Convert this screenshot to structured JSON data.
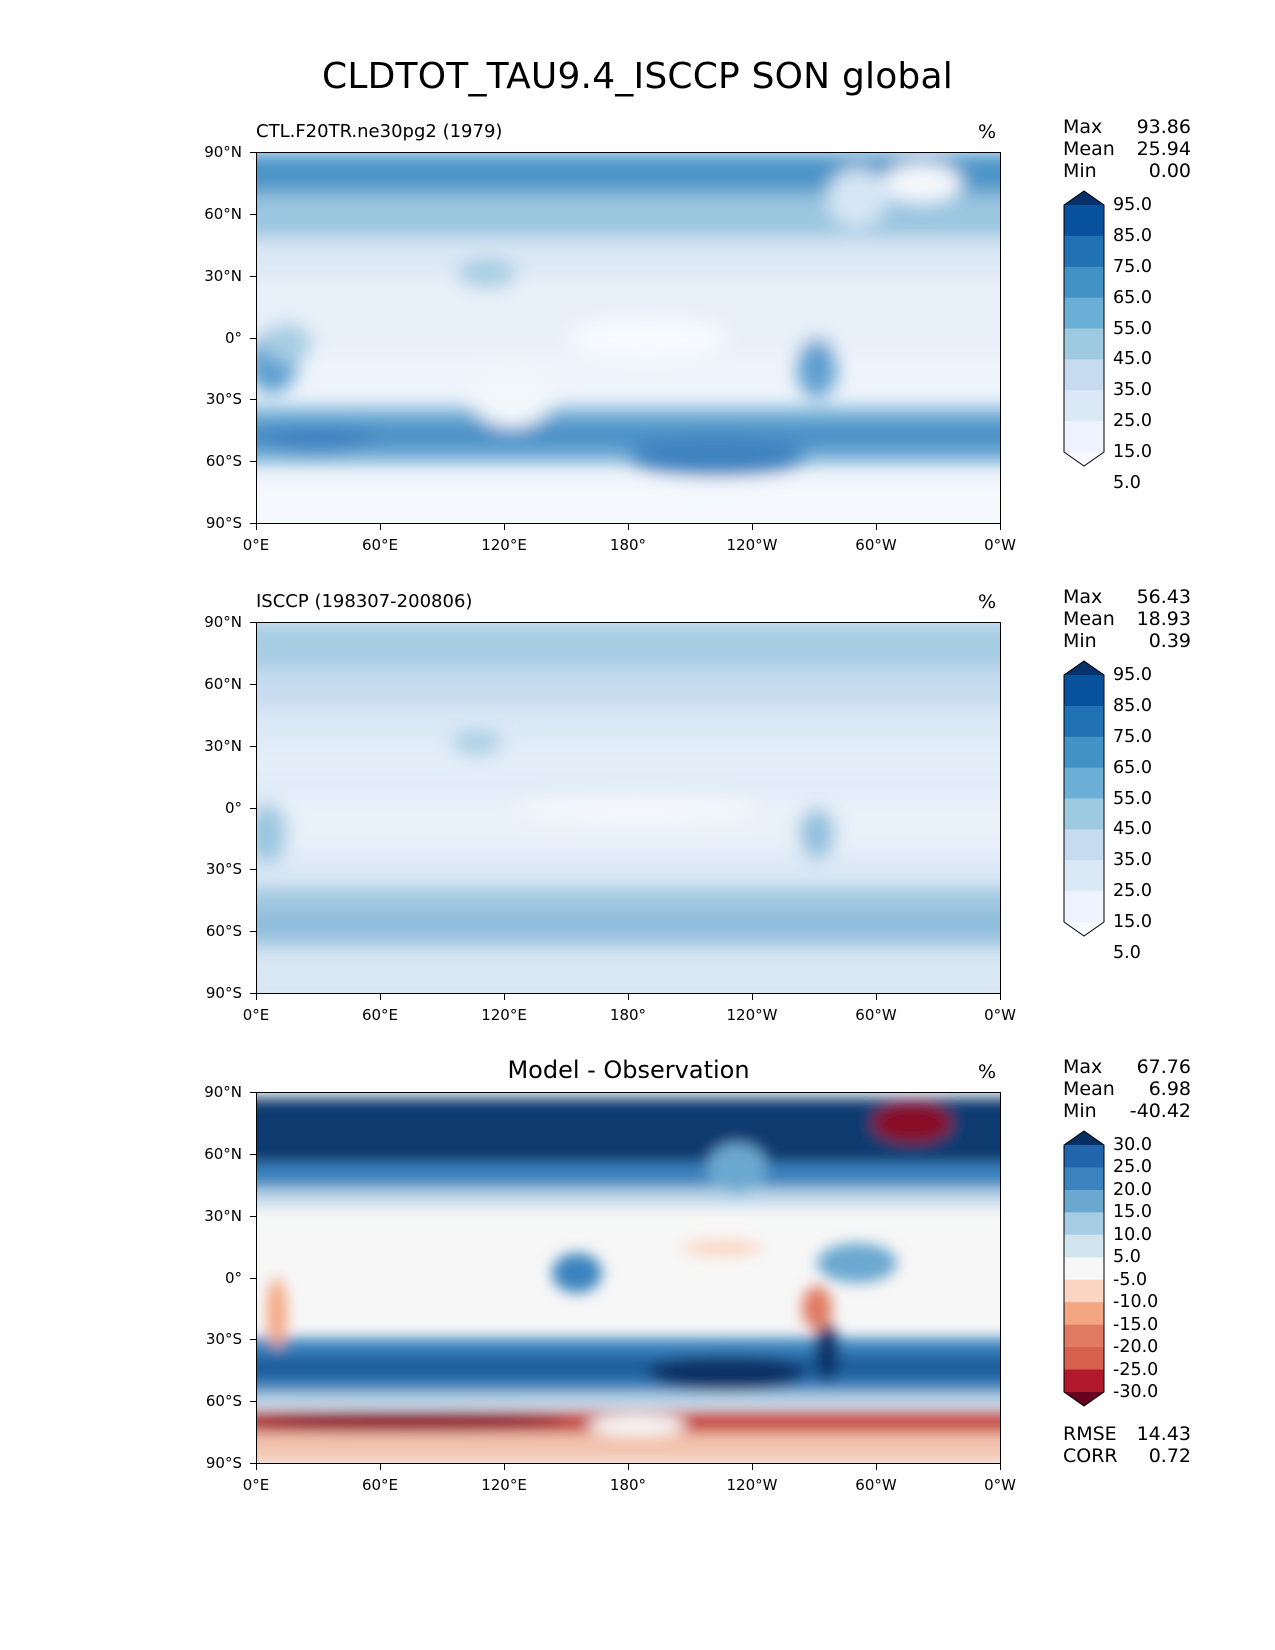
{
  "figure_title": "CLDTOT_TAU9.4_ISCCP SON global",
  "lat_labels": [
    "90°N",
    "60°N",
    "30°N",
    "0°",
    "30°S",
    "60°S",
    "90°S"
  ],
  "lon_labels": [
    "0°E",
    "60°E",
    "120°E",
    "180°",
    "120°W",
    "60°W",
    "0°W"
  ],
  "panels": [
    {
      "title": "CTL.F20TR.ne30pg2 (1979)",
      "units": "%",
      "stats": [
        {
          "label": "Max",
          "value": "93.86"
        },
        {
          "label": "Mean",
          "value": "25.94"
        },
        {
          "label": "Min",
          "value": "0.00"
        }
      ],
      "colorbar_labels": [
        "95.0",
        "85.0",
        "75.0",
        "65.0",
        "55.0",
        "45.0",
        "35.0",
        "25.0",
        "15.0",
        "5.0"
      ],
      "colorbar_colors": [
        "#08306b",
        "#08519c",
        "#2171b5",
        "#4292c6",
        "#6baed6",
        "#9ecae1",
        "#c6dbef",
        "#dbe9f6",
        "#eff3ff",
        "#f7fbff"
      ]
    },
    {
      "title": "ISCCP (198307-200806)",
      "units": "%",
      "stats": [
        {
          "label": "Max",
          "value": "56.43"
        },
        {
          "label": "Mean",
          "value": "18.93"
        },
        {
          "label": "Min",
          "value": "0.39"
        }
      ],
      "colorbar_labels": [
        "95.0",
        "85.0",
        "75.0",
        "65.0",
        "55.0",
        "45.0",
        "35.0",
        "25.0",
        "15.0",
        "5.0"
      ],
      "colorbar_colors": [
        "#08306b",
        "#08519c",
        "#2171b5",
        "#4292c6",
        "#6baed6",
        "#9ecae1",
        "#c6dbef",
        "#dbe9f6",
        "#eff3ff",
        "#f7fbff"
      ]
    },
    {
      "title": "Model - Observation",
      "units": "%",
      "stats": [
        {
          "label": "Max",
          "value": "67.76"
        },
        {
          "label": "Mean",
          "value": "6.98"
        },
        {
          "label": "Min",
          "value": "-40.42"
        }
      ],
      "colorbar_labels": [
        "30.0",
        "25.0",
        "20.0",
        "15.0",
        "10.0",
        "5.0",
        "-5.0",
        "-10.0",
        "-15.0",
        "-20.0",
        "-25.0",
        "-30.0"
      ],
      "colorbar_colors": [
        "#053061",
        "#2166ac",
        "#3a83be",
        "#6aa8d0",
        "#a6cde3",
        "#d1e5f0",
        "#f7f7f7",
        "#fbd5c1",
        "#f4a582",
        "#e07a62",
        "#d6604d",
        "#b2182b",
        "#67001f"
      ],
      "metrics": [
        {
          "label": "RMSE",
          "value": "14.43"
        },
        {
          "label": "CORR",
          "value": "0.72"
        }
      ]
    }
  ]
}
